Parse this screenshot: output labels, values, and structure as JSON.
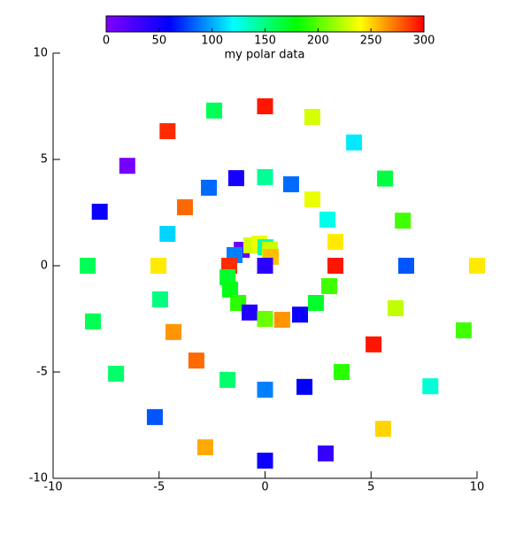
{
  "chart_data": {
    "type": "scatter",
    "colorbar_label": "my polar data",
    "clim": [
      0,
      300
    ],
    "cticks": [
      0,
      50,
      100,
      150,
      200,
      250,
      300
    ],
    "colormap": [
      "#8000ff",
      "#0000ff",
      "#00ffff",
      "#00ff00",
      "#ffff00",
      "#ff0000"
    ],
    "xlim": [
      -10,
      10
    ],
    "xticks": [
      -10,
      -5,
      0,
      5,
      10
    ],
    "ylim": [
      -10,
      10
    ],
    "yticks": [
      -10,
      -5,
      0,
      5,
      10
    ],
    "marker": "square",
    "x": [
      0,
      -2.4,
      2.23,
      -4.6,
      4.2,
      -6.5,
      5.66,
      0,
      -1.36,
      1.23,
      -2.65,
      2.23,
      -3.78,
      -7.8,
      2.94,
      6.5,
      -4.6,
      3.32,
      -1.1,
      -0.65,
      -0.27,
      0.02,
      0.23,
      0.27,
      -1.44,
      -1.69,
      0,
      -8.37,
      -5.03,
      3.32,
      6.66,
      10,
      -1.77,
      -1.65,
      3.03,
      -1.27,
      -4.95,
      2.4,
      6.16,
      -0.73,
      0,
      0.81,
      1.65,
      -8.12,
      -4.32,
      9.37,
      5.12,
      -3.24,
      3.61,
      -7.03,
      -1.77,
      7.8,
      0,
      1.86,
      -5.2,
      5.57,
      -2.82,
      0,
      2.86
    ],
    "y": [
      7.5,
      7.3,
      7.0,
      6.33,
      5.8,
      4.7,
      4.1,
      4.17,
      4.12,
      3.83,
      3.67,
      3.12,
      2.75,
      2.54,
      2.17,
      2.12,
      1.5,
      1.12,
      0.75,
      0.96,
      1.04,
      0.87,
      0.75,
      0.42,
      0.5,
      0,
      0,
      0,
      0,
      0,
      0,
      0,
      -0.54,
      -1.12,
      -0.96,
      -1.75,
      -1.58,
      -1.75,
      -2.0,
      -2.2,
      -2.5,
      -2.54,
      -2.3,
      -2.62,
      -3.12,
      -3.04,
      -3.7,
      -4.46,
      -5.0,
      -5.08,
      -5.37,
      -5.67,
      -5.83,
      -5.7,
      -7.12,
      -7.67,
      -8.54,
      -9.17,
      -8.83
    ],
    "c": [
      295,
      160,
      230,
      290,
      115,
      5,
      165,
      145,
      50,
      85,
      85,
      235,
      275,
      55,
      125,
      195,
      110,
      245,
      10,
      230,
      235,
      140,
      228,
      255,
      90,
      290,
      40,
      160,
      245,
      295,
      80,
      245,
      170,
      175,
      195,
      190,
      150,
      170,
      225,
      45,
      205,
      265,
      55,
      160,
      265,
      195,
      295,
      275,
      190,
      155,
      155,
      130,
      90,
      60,
      80,
      250,
      260,
      55,
      35
    ]
  }
}
